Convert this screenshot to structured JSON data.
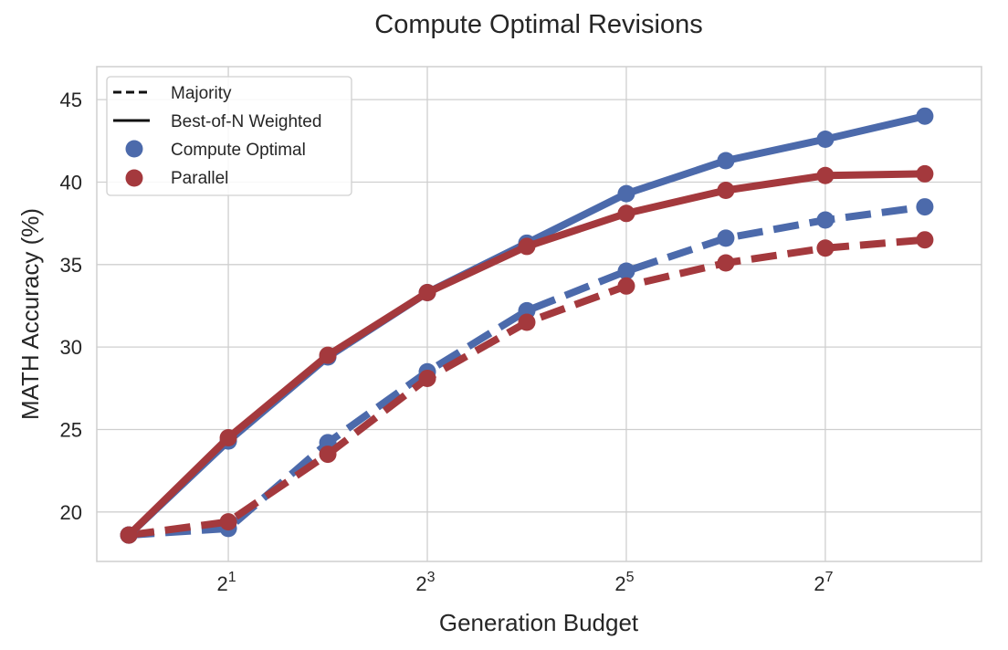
{
  "chart_data": {
    "type": "line",
    "title": "Compute Optimal Revisions",
    "xlabel": "Generation Budget",
    "ylabel": "MATH Accuracy (%)",
    "x_scale": "log2",
    "x": [
      1,
      2,
      4,
      8,
      16,
      32,
      64,
      128,
      256
    ],
    "xlim": [
      0.8,
      380
    ],
    "ylim": [
      17,
      47
    ],
    "x_ticks": [
      {
        "value": 2,
        "base": "2",
        "exp": "1"
      },
      {
        "value": 8,
        "base": "2",
        "exp": "3"
      },
      {
        "value": 32,
        "base": "2",
        "exp": "5"
      },
      {
        "value": 128,
        "base": "2",
        "exp": "7"
      }
    ],
    "y_ticks": [
      20,
      25,
      30,
      35,
      40,
      45
    ],
    "grid": true,
    "legend_position": "top-left",
    "legend": [
      {
        "label": "Majority",
        "kind": "dashed-line"
      },
      {
        "label": "Best-of-N Weighted",
        "kind": "solid-line"
      },
      {
        "label": "Compute Optimal",
        "kind": "marker",
        "color": "#4c6aab"
      },
      {
        "label": "Parallel",
        "kind": "marker",
        "color": "#a4393d"
      }
    ],
    "series": [
      {
        "method": "Compute Optimal",
        "aggregation": "Best-of-N Weighted",
        "style": "solid",
        "color": "#4c6aab",
        "values": [
          18.6,
          24.3,
          29.4,
          33.3,
          36.3,
          39.3,
          41.3,
          42.6,
          44.0
        ]
      },
      {
        "method": "Parallel",
        "aggregation": "Best-of-N Weighted",
        "style": "solid",
        "color": "#a4393d",
        "values": [
          18.6,
          24.5,
          29.5,
          33.3,
          36.1,
          38.1,
          39.5,
          40.4,
          40.5
        ]
      },
      {
        "method": "Compute Optimal",
        "aggregation": "Majority",
        "style": "dashed",
        "color": "#4c6aab",
        "values": [
          18.6,
          19.0,
          24.2,
          28.5,
          32.2,
          34.6,
          36.6,
          37.7,
          38.5
        ]
      },
      {
        "method": "Parallel",
        "aggregation": "Majority",
        "style": "dashed",
        "color": "#a4393d",
        "values": [
          18.6,
          19.4,
          23.5,
          28.1,
          31.5,
          33.7,
          35.1,
          36.0,
          36.5
        ]
      }
    ]
  }
}
